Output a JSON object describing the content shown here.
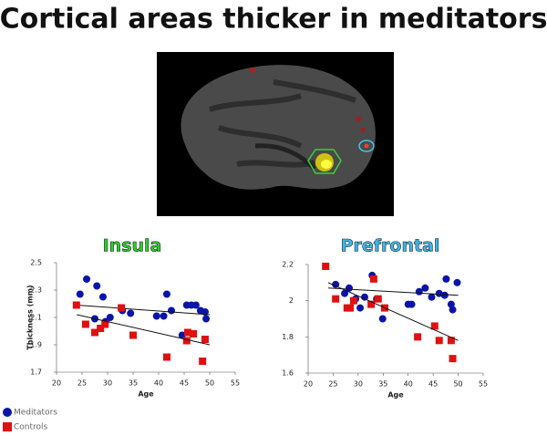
{
  "title": "Cortical areas thicker in meditators",
  "chart_data": [
    {
      "type": "scatter",
      "title": "Insula",
      "title_color": "#2ccf2c",
      "xlabel": "Age",
      "ylabel": "Thickness (mm)",
      "xlim": [
        20,
        55
      ],
      "ylim": [
        1.7,
        2.5
      ],
      "xticks": [
        20,
        25,
        30,
        35,
        40,
        45,
        50,
        55
      ],
      "yticks": [
        1.7,
        1.9,
        2.1,
        2.3,
        2.5
      ],
      "series": [
        {
          "name": "Meditators",
          "color": "#0a14a8",
          "marker": "circle",
          "x": [
            25.9,
            24.6,
            27.9,
            29.1,
            27.5,
            29.6,
            30.5,
            32.9,
            34.5,
            39.6,
            41,
            41.6,
            42.5,
            45.5,
            46.4,
            47.3,
            48.2,
            49.1,
            44.6,
            49.3
          ],
          "values": [
            2.38,
            2.27,
            2.33,
            2.25,
            2.09,
            2.07,
            2.1,
            2.15,
            2.13,
            2.11,
            2.11,
            2.27,
            2.15,
            2.19,
            2.19,
            2.19,
            2.15,
            2.14,
            1.97,
            2.09
          ],
          "fit": {
            "x": [
              24,
              50
            ],
            "y": [
              2.19,
              2.12
            ]
          }
        },
        {
          "name": "Controls",
          "color": "#e01010",
          "marker": "square",
          "x": [
            23.9,
            25.7,
            27.5,
            29.5,
            28.6,
            32.7,
            35,
            41.6,
            45.5,
            45.7,
            46.8,
            49.1,
            48.6
          ],
          "values": [
            2.19,
            2.05,
            1.99,
            2.05,
            2.02,
            2.17,
            1.97,
            1.81,
            1.93,
            1.99,
            1.98,
            1.94,
            1.78
          ],
          "fit": {
            "x": [
              24,
              50
            ],
            "y": [
              2.12,
              1.9
            ]
          }
        }
      ]
    },
    {
      "type": "scatter",
      "title": "Prefrontal",
      "title_color": "#3cb8ea",
      "xlabel": "Age",
      "xlim": [
        20,
        55
      ],
      "ylim": [
        1.6,
        2.2
      ],
      "xticks": [
        20,
        25,
        30,
        35,
        40,
        45,
        50,
        55
      ],
      "yticks": [
        1.6,
        1.8,
        2,
        2.2
      ],
      "series": [
        {
          "color": "#0a14a8",
          "marker": "circle",
          "x": [
            25.5,
            27.3,
            28.2,
            29.5,
            30.4,
            31.3,
            32.8,
            33.7,
            34.9,
            40,
            40.7,
            42.2,
            43.4,
            44.7,
            46.2,
            47.3,
            47.6,
            48.6,
            48.9,
            49.8
          ],
          "values": [
            2.09,
            2.04,
            2.07,
            2.01,
            1.96,
            2.02,
            2.14,
            2.01,
            1.9,
            1.98,
            1.98,
            2.05,
            2.07,
            2.02,
            2.04,
            2.03,
            2.12,
            1.98,
            1.95,
            2.1
          ],
          "fit": {
            "x": [
              24,
              50
            ],
            "y": [
              2.07,
              2.03
            ]
          }
        },
        {
          "color": "#e01010",
          "marker": "square",
          "x": [
            23.5,
            25.5,
            27.8,
            28.4,
            29.1,
            32.6,
            33.1,
            34,
            35.3,
            41.9,
            45.3,
            46.2,
            48.6,
            48.9
          ],
          "values": [
            2.19,
            2.01,
            1.96,
            1.96,
            2,
            1.98,
            2.12,
            2.01,
            1.96,
            1.8,
            1.86,
            1.78,
            1.78,
            1.68
          ],
          "fit": {
            "x": [
              24,
              50
            ],
            "y": [
              2.1,
              1.78
            ]
          }
        }
      ]
    }
  ]
}
